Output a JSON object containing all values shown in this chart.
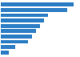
{
  "values": [
    100,
    91,
    65,
    59,
    54,
    48,
    43,
    37,
    20,
    11
  ],
  "bar_color": "#2f7fc6",
  "background_color": "#ffffff",
  "bar_height": 0.72,
  "xlim_max": 105
}
